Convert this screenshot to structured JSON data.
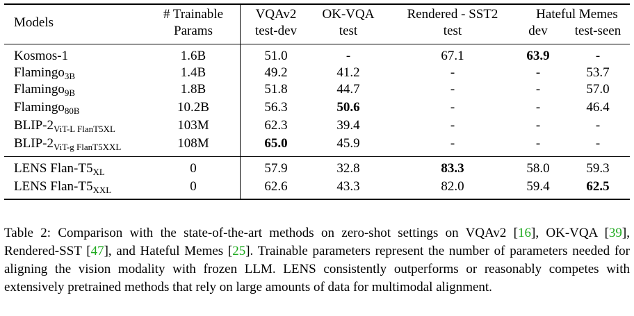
{
  "header": {
    "models": "Models",
    "params_line1": "# Trainable",
    "params_line2": "Params",
    "vqa_line1": "VQAv2",
    "vqa_line2": "test-dev",
    "okvqa_line1": "OK-VQA",
    "okvqa_line2": "test",
    "sst_line1": "Rendered - SST2",
    "sst_line2": "test",
    "hateful_group": "Hateful Memes",
    "hateful_dev": "dev",
    "hateful_seen": "test-seen"
  },
  "rows": [
    {
      "base": "Kosmos-1",
      "sub": "",
      "params": "1.6B",
      "vqa": "51.0",
      "okvqa": "-",
      "sst": "67.1",
      "hm_dev": "63.9",
      "hm_seen": "-"
    },
    {
      "base": "Flamingo",
      "sub": "3B",
      "params": "1.4B",
      "vqa": "49.2",
      "okvqa": "41.2",
      "sst": "-",
      "hm_dev": "-",
      "hm_seen": "53.7"
    },
    {
      "base": "Flamingo",
      "sub": "9B",
      "params": "1.8B",
      "vqa": "51.8",
      "okvqa": "44.7",
      "sst": "-",
      "hm_dev": "-",
      "hm_seen": "57.0"
    },
    {
      "base": "Flamingo",
      "sub": "80B",
      "params": "10.2B",
      "vqa": "56.3",
      "okvqa": "50.6",
      "sst": "-",
      "hm_dev": "-",
      "hm_seen": "46.4"
    },
    {
      "base": "BLIP-2",
      "sub": "ViT-L FlanT5XL",
      "params": "103M",
      "vqa": "62.3",
      "okvqa": "39.4",
      "sst": "-",
      "hm_dev": "-",
      "hm_seen": "-"
    },
    {
      "base": "BLIP-2",
      "sub": "ViT-g FlanT5XXL",
      "params": "108M",
      "vqa": "65.0",
      "okvqa": "45.9",
      "sst": "-",
      "hm_dev": "-",
      "hm_seen": "-"
    },
    {
      "base": "LENS Flan-T5",
      "sub": "XL",
      "params": "0",
      "vqa": "57.9",
      "okvqa": "32.8",
      "sst": "83.3",
      "hm_dev": "58.0",
      "hm_seen": "59.3"
    },
    {
      "base": "LENS Flan-T5",
      "sub": "XXL",
      "params": "0",
      "vqa": "62.6",
      "okvqa": "43.3",
      "sst": "82.0",
      "hm_dev": "59.4",
      "hm_seen": "62.5"
    }
  ],
  "caption": {
    "p1": "Table 2: Comparison with the state-of-the-art methods on zero-shot settings on VQAv2 [",
    "c1": "16",
    "p2": "], OK-VQA [",
    "c2": "39",
    "p3": "], Rendered-SST [",
    "c3": "47",
    "p4": "], and Hateful Memes [",
    "c4": "25",
    "p5": "]. Trainable parameters represent the number of parameters needed for aligning the vision modality with frozen LLM. LENS consistently outperforms or reasonably competes with extensively pretrained methods that rely on large amounts of data for multimodal alignment."
  }
}
